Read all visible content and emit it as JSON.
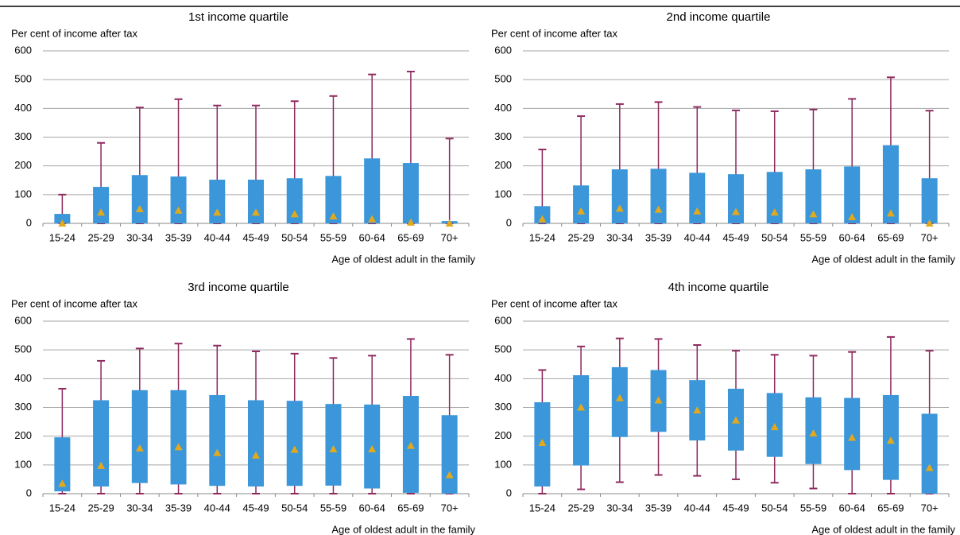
{
  "chart_data": [
    {
      "type": "box",
      "title": "1st income quartile",
      "y_label": "Per cent of income after tax",
      "x_label": "Age of oldest adult in the family",
      "categories": [
        "15-24",
        "25-29",
        "30-34",
        "35-39",
        "40-44",
        "45-49",
        "50-54",
        "55-59",
        "60-64",
        "65-69",
        "70+"
      ],
      "whisker_low": [
        0,
        0,
        0,
        0,
        0,
        0,
        0,
        0,
        0,
        0,
        0
      ],
      "box_low": [
        0,
        0,
        0,
        0,
        0,
        0,
        0,
        0,
        0,
        0,
        0
      ],
      "box_high": [
        33,
        127,
        168,
        163,
        152,
        152,
        157,
        165,
        226,
        210,
        8
      ],
      "whisker_high": [
        100,
        280,
        403,
        432,
        410,
        410,
        425,
        443,
        518,
        528,
        295
      ],
      "marker": [
        0,
        38,
        50,
        45,
        38,
        38,
        32,
        25,
        15,
        3,
        0
      ],
      "ylim": [
        0,
        600
      ],
      "yticks": [
        0,
        100,
        200,
        300,
        400,
        500,
        600
      ],
      "grid": true,
      "box_color": "#3b97d9",
      "whisker_color": "#8e2a5f",
      "marker_color": "#e2a91d"
    },
    {
      "type": "box",
      "title": "2nd income quartile",
      "y_label": "Per cent of income after tax",
      "x_label": "Age of oldest adult in the family",
      "categories": [
        "15-24",
        "25-29",
        "30-34",
        "35-39",
        "40-44",
        "45-49",
        "50-54",
        "55-59",
        "60-64",
        "65-69",
        "70+"
      ],
      "whisker_low": [
        0,
        0,
        0,
        0,
        0,
        0,
        0,
        0,
        0,
        0,
        0
      ],
      "box_low": [
        0,
        0,
        0,
        0,
        0,
        0,
        0,
        0,
        0,
        0,
        0
      ],
      "box_high": [
        60,
        132,
        188,
        190,
        176,
        171,
        179,
        188,
        198,
        272,
        157
      ],
      "whisker_high": [
        257,
        373,
        415,
        422,
        405,
        393,
        390,
        396,
        433,
        508,
        392
      ],
      "marker": [
        15,
        42,
        52,
        48,
        42,
        40,
        38,
        32,
        22,
        35,
        0
      ],
      "ylim": [
        0,
        600
      ],
      "yticks": [
        0,
        100,
        200,
        300,
        400,
        500,
        600
      ],
      "grid": true,
      "box_color": "#3b97d9",
      "whisker_color": "#8e2a5f",
      "marker_color": "#e2a91d"
    },
    {
      "type": "box",
      "title": "3rd income quartile",
      "y_label": "Per cent of income after tax",
      "x_label": "Age of oldest adult in the family",
      "categories": [
        "15-24",
        "25-29",
        "30-34",
        "35-39",
        "40-44",
        "45-49",
        "50-54",
        "55-59",
        "60-64",
        "65-69",
        "70+"
      ],
      "whisker_low": [
        0,
        0,
        0,
        0,
        0,
        0,
        0,
        0,
        0,
        0,
        0
      ],
      "box_low": [
        8,
        25,
        37,
        32,
        27,
        25,
        27,
        28,
        18,
        3,
        0
      ],
      "box_high": [
        196,
        325,
        360,
        360,
        343,
        325,
        323,
        312,
        310,
        340,
        273
      ],
      "whisker_high": [
        365,
        462,
        505,
        522,
        515,
        495,
        487,
        472,
        480,
        538,
        483
      ],
      "marker": [
        35,
        97,
        158,
        162,
        142,
        133,
        153,
        155,
        155,
        167,
        65
      ],
      "ylim": [
        0,
        600
      ],
      "yticks": [
        0,
        100,
        200,
        300,
        400,
        500,
        600
      ],
      "grid": true,
      "box_color": "#3b97d9",
      "whisker_color": "#8e2a5f",
      "marker_color": "#e2a91d"
    },
    {
      "type": "box",
      "title": "4th income quartile",
      "y_label": "Per cent of income after tax",
      "x_label": "Age of oldest adult in the family",
      "categories": [
        "15-24",
        "25-29",
        "30-34",
        "35-39",
        "40-44",
        "45-49",
        "50-54",
        "55-59",
        "60-64",
        "65-69",
        "70+"
      ],
      "whisker_low": [
        0,
        15,
        40,
        65,
        62,
        50,
        38,
        18,
        0,
        0,
        0
      ],
      "box_low": [
        25,
        98,
        197,
        215,
        185,
        150,
        128,
        103,
        82,
        48,
        0
      ],
      "box_high": [
        318,
        412,
        440,
        430,
        395,
        365,
        350,
        335,
        333,
        343,
        278
      ],
      "whisker_high": [
        430,
        512,
        540,
        538,
        517,
        497,
        483,
        480,
        493,
        545,
        497
      ],
      "marker": [
        177,
        300,
        333,
        325,
        290,
        255,
        232,
        210,
        195,
        185,
        90
      ],
      "ylim": [
        0,
        600
      ],
      "yticks": [
        0,
        100,
        200,
        300,
        400,
        500,
        600
      ],
      "grid": true,
      "box_color": "#3b97d9",
      "whisker_color": "#8e2a5f",
      "marker_color": "#e2a91d"
    }
  ]
}
